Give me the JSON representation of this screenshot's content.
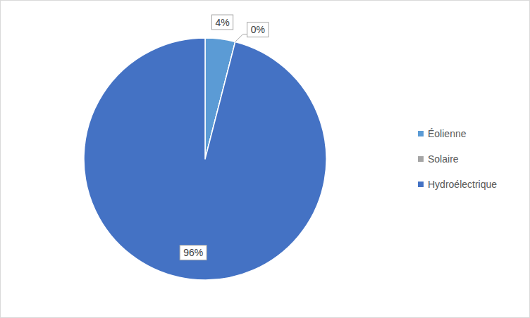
{
  "chart_data": {
    "type": "pie",
    "categories": [
      "Éolienne",
      "Solaire",
      "Hydroélectrique"
    ],
    "values": [
      4,
      0,
      96
    ],
    "value_labels": [
      "4%",
      "0%",
      "96%"
    ],
    "colors": [
      "#5b9bd5",
      "#a5a5a5",
      "#4472c4"
    ],
    "data_labels": true,
    "legend": "right"
  }
}
